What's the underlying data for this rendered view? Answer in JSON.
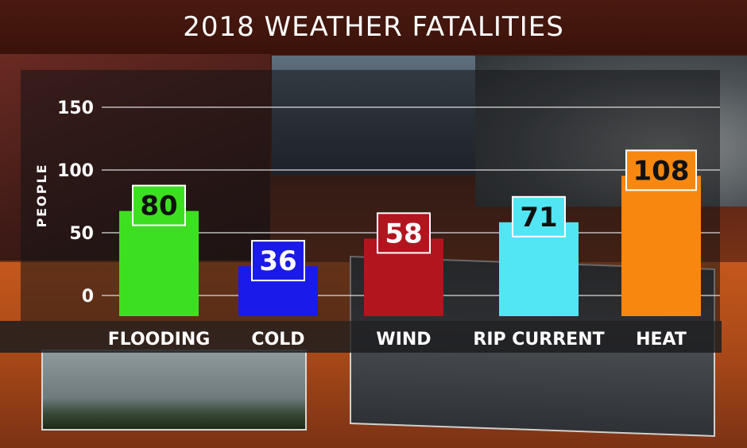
{
  "chart_data": {
    "type": "bar",
    "title": "2018 WEATHER FATALITIES",
    "ylabel": "PEOPLE",
    "xlabel": "",
    "ylim": [
      0,
      150
    ],
    "yticks": [
      0,
      50,
      100,
      150
    ],
    "grid": true,
    "categories": [
      "FLOODING",
      "COLD",
      "WIND",
      "RIP CURRENT",
      "HEAT"
    ],
    "values": [
      80,
      36,
      58,
      71,
      108
    ],
    "colors": [
      "#3de021",
      "#1a1aea",
      "#b3151f",
      "#52e6f5",
      "#f8870f"
    ],
    "label_text_colors": [
      "#111111",
      "#ffffff",
      "#ffffff",
      "#111111",
      "#111111"
    ]
  }
}
